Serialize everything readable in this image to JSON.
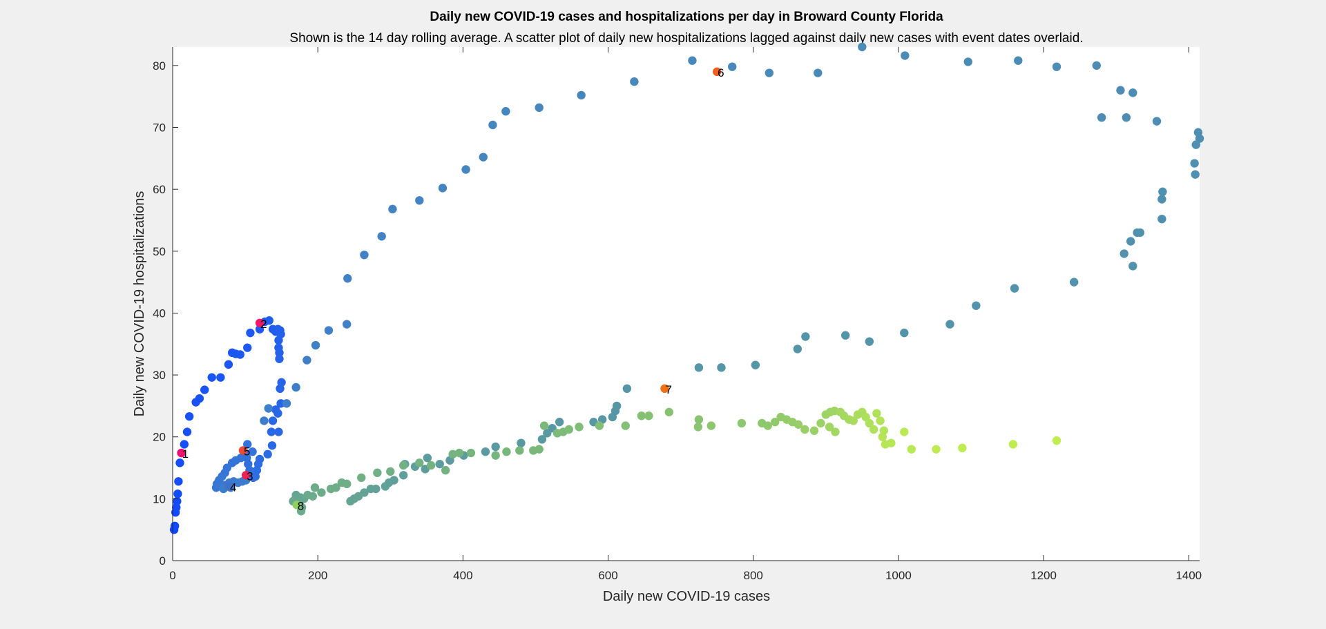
{
  "chart_data": {
    "type": "scatter",
    "title": "Daily new COVID-19 cases and hospitalizations per day in Broward County Florida",
    "subtitle": "Shown is the 14 day rolling average. A scatter plot of daily new hospitalizations lagged against daily new cases with event dates overlaid.",
    "xlabel": "Daily new COVID-19 cases",
    "ylabel": "Daily new COVID-19 hospitalizations",
    "xlim": [
      0,
      1415
    ],
    "ylim": [
      0,
      83
    ],
    "xticks": [
      0,
      200,
      400,
      600,
      800,
      1000,
      1200,
      1400
    ],
    "yticks": [
      0,
      10,
      20,
      30,
      40,
      50,
      60,
      70,
      80
    ],
    "grid": false,
    "color_ramp": [
      "#1048ff",
      "#2f6fe0",
      "#4a8ab8",
      "#5a9aa0",
      "#7ab87a",
      "#c0ee50"
    ],
    "points": [
      {
        "x": 2,
        "y": 5.0
      },
      {
        "x": 3,
        "y": 5.6
      },
      {
        "x": 4,
        "y": 7.8
      },
      {
        "x": 5,
        "y": 8.6
      },
      {
        "x": 6,
        "y": 9.6
      },
      {
        "x": 7,
        "y": 10.8
      },
      {
        "x": 8,
        "y": 12.8
      },
      {
        "x": 10,
        "y": 15.8
      },
      {
        "x": 12,
        "y": 17.4
      },
      {
        "x": 16,
        "y": 18.8
      },
      {
        "x": 20,
        "y": 20.8
      },
      {
        "x": 23,
        "y": 23.3
      },
      {
        "x": 32,
        "y": 25.6
      },
      {
        "x": 37,
        "y": 26.2
      },
      {
        "x": 44,
        "y": 27.6
      },
      {
        "x": 54,
        "y": 29.6
      },
      {
        "x": 66,
        "y": 29.6
      },
      {
        "x": 77,
        "y": 31.7
      },
      {
        "x": 82,
        "y": 33.6
      },
      {
        "x": 87,
        "y": 33.4
      },
      {
        "x": 93,
        "y": 33.3
      },
      {
        "x": 103,
        "y": 34.4
      },
      {
        "x": 107,
        "y": 36.8
      },
      {
        "x": 120,
        "y": 37.4
      },
      {
        "x": 127,
        "y": 38.6
      },
      {
        "x": 133,
        "y": 38.8
      },
      {
        "x": 138,
        "y": 37.4
      },
      {
        "x": 142,
        "y": 37.0
      },
      {
        "x": 145,
        "y": 37.4
      },
      {
        "x": 148,
        "y": 37.2
      },
      {
        "x": 149,
        "y": 36.6
      },
      {
        "x": 146,
        "y": 35.6
      },
      {
        "x": 146,
        "y": 34.4
      },
      {
        "x": 147,
        "y": 33.6
      },
      {
        "x": 147,
        "y": 32.6
      },
      {
        "x": 150,
        "y": 28.8
      },
      {
        "x": 148,
        "y": 27.8
      },
      {
        "x": 149,
        "y": 25.4
      },
      {
        "x": 142,
        "y": 24.4
      },
      {
        "x": 145,
        "y": 23.8
      },
      {
        "x": 138,
        "y": 22.6
      },
      {
        "x": 146,
        "y": 20.8
      },
      {
        "x": 136,
        "y": 20.8
      },
      {
        "x": 137,
        "y": 18.6
      },
      {
        "x": 131,
        "y": 17.2
      },
      {
        "x": 120,
        "y": 16.4
      },
      {
        "x": 118,
        "y": 15.6
      },
      {
        "x": 116,
        "y": 14.6
      },
      {
        "x": 114,
        "y": 13.6
      },
      {
        "x": 111,
        "y": 13.4
      },
      {
        "x": 108,
        "y": 13.6
      },
      {
        "x": 106,
        "y": 14.6
      },
      {
        "x": 104,
        "y": 15.6
      },
      {
        "x": 102,
        "y": 16.6
      },
      {
        "x": 100,
        "y": 17.4
      },
      {
        "x": 103,
        "y": 18.8
      },
      {
        "x": 110,
        "y": 17.6
      },
      {
        "x": 94,
        "y": 16.6
      },
      {
        "x": 87,
        "y": 16.2
      },
      {
        "x": 82,
        "y": 15.8
      },
      {
        "x": 75,
        "y": 15.0
      },
      {
        "x": 72,
        "y": 14.2
      },
      {
        "x": 68,
        "y": 13.6
      },
      {
        "x": 64,
        "y": 13.0
      },
      {
        "x": 61,
        "y": 12.4
      },
      {
        "x": 60,
        "y": 11.8
      },
      {
        "x": 66,
        "y": 12.0
      },
      {
        "x": 72,
        "y": 12.2
      },
      {
        "x": 78,
        "y": 12.6
      },
      {
        "x": 84,
        "y": 12.8
      },
      {
        "x": 90,
        "y": 12.6
      },
      {
        "x": 96,
        "y": 12.8
      },
      {
        "x": 101,
        "y": 13.0
      },
      {
        "x": 70,
        "y": 11.6
      },
      {
        "x": 80,
        "y": 11.8
      },
      {
        "x": 126,
        "y": 22.6
      },
      {
        "x": 132,
        "y": 24.6
      },
      {
        "x": 157,
        "y": 25.4
      },
      {
        "x": 170,
        "y": 28.0
      },
      {
        "x": 185,
        "y": 32.4
      },
      {
        "x": 197,
        "y": 34.8
      },
      {
        "x": 215,
        "y": 37.2
      },
      {
        "x": 240,
        "y": 38.2
      },
      {
        "x": 241,
        "y": 45.6
      },
      {
        "x": 264,
        "y": 49.4
      },
      {
        "x": 288,
        "y": 52.4
      },
      {
        "x": 303,
        "y": 56.8
      },
      {
        "x": 340,
        "y": 58.2
      },
      {
        "x": 372,
        "y": 60.2
      },
      {
        "x": 404,
        "y": 63.2
      },
      {
        "x": 428,
        "y": 65.2
      },
      {
        "x": 441,
        "y": 70.4
      },
      {
        "x": 459,
        "y": 72.6
      },
      {
        "x": 505,
        "y": 73.2
      },
      {
        "x": 563,
        "y": 75.2
      },
      {
        "x": 636,
        "y": 77.4
      },
      {
        "x": 716,
        "y": 80.8
      },
      {
        "x": 771,
        "y": 79.8
      },
      {
        "x": 822,
        "y": 78.8
      },
      {
        "x": 889,
        "y": 78.8
      },
      {
        "x": 950,
        "y": 83.0
      },
      {
        "x": 1009,
        "y": 81.6
      },
      {
        "x": 1096,
        "y": 80.6
      },
      {
        "x": 1165,
        "y": 80.8
      },
      {
        "x": 1218,
        "y": 79.8
      },
      {
        "x": 1273,
        "y": 80.0
      },
      {
        "x": 1306,
        "y": 76.0
      },
      {
        "x": 1323,
        "y": 75.6
      },
      {
        "x": 1280,
        "y": 71.6
      },
      {
        "x": 1314,
        "y": 71.6
      },
      {
        "x": 1356,
        "y": 71.0
      },
      {
        "x": 1413,
        "y": 69.2
      },
      {
        "x": 1415,
        "y": 68.2
      },
      {
        "x": 1410,
        "y": 67.2
      },
      {
        "x": 1408,
        "y": 64.2
      },
      {
        "x": 1409,
        "y": 62.4
      },
      {
        "x": 1364,
        "y": 59.6
      },
      {
        "x": 1363,
        "y": 58.4
      },
      {
        "x": 1363,
        "y": 55.2
      },
      {
        "x": 1329,
        "y": 53.0
      },
      {
        "x": 1333,
        "y": 53.0
      },
      {
        "x": 1320,
        "y": 51.6
      },
      {
        "x": 1311,
        "y": 49.6
      },
      {
        "x": 1323,
        "y": 47.6
      },
      {
        "x": 1242,
        "y": 45.0
      },
      {
        "x": 1160,
        "y": 44.0
      },
      {
        "x": 1107,
        "y": 41.2
      },
      {
        "x": 1071,
        "y": 38.2
      },
      {
        "x": 1008,
        "y": 36.8
      },
      {
        "x": 927,
        "y": 36.4
      },
      {
        "x": 960,
        "y": 35.4
      },
      {
        "x": 872,
        "y": 36.2
      },
      {
        "x": 861,
        "y": 34.2
      },
      {
        "x": 803,
        "y": 31.6
      },
      {
        "x": 756,
        "y": 31.2
      },
      {
        "x": 725,
        "y": 31.2
      },
      {
        "x": 626,
        "y": 27.8
      },
      {
        "x": 612,
        "y": 25.0
      },
      {
        "x": 610,
        "y": 24.2
      },
      {
        "x": 606,
        "y": 23.2
      },
      {
        "x": 592,
        "y": 22.8
      },
      {
        "x": 580,
        "y": 22.4
      },
      {
        "x": 533,
        "y": 22.4
      },
      {
        "x": 523,
        "y": 21.4
      },
      {
        "x": 516,
        "y": 20.6
      },
      {
        "x": 509,
        "y": 19.6
      },
      {
        "x": 480,
        "y": 19.0
      },
      {
        "x": 445,
        "y": 18.4
      },
      {
        "x": 431,
        "y": 17.6
      },
      {
        "x": 401,
        "y": 17.0
      },
      {
        "x": 382,
        "y": 16.2
      },
      {
        "x": 368,
        "y": 15.6
      },
      {
        "x": 351,
        "y": 16.6
      },
      {
        "x": 348,
        "y": 14.8
      },
      {
        "x": 334,
        "y": 15.2
      },
      {
        "x": 320,
        "y": 15.6
      },
      {
        "x": 318,
        "y": 13.8
      },
      {
        "x": 305,
        "y": 13.0
      },
      {
        "x": 298,
        "y": 12.6
      },
      {
        "x": 293,
        "y": 12.0
      },
      {
        "x": 280,
        "y": 11.6
      },
      {
        "x": 273,
        "y": 11.6
      },
      {
        "x": 264,
        "y": 11.0
      },
      {
        "x": 256,
        "y": 10.4
      },
      {
        "x": 250,
        "y": 10.0
      },
      {
        "x": 245,
        "y": 9.6
      },
      {
        "x": 170,
        "y": 10.6
      },
      {
        "x": 176,
        "y": 10.2
      },
      {
        "x": 181,
        "y": 10.0
      },
      {
        "x": 168,
        "y": 9.8
      },
      {
        "x": 172,
        "y": 9.4
      },
      {
        "x": 166,
        "y": 9.6
      },
      {
        "x": 175,
        "y": 9.0
      },
      {
        "x": 178,
        "y": 8.6
      },
      {
        "x": 177,
        "y": 8.0
      },
      {
        "x": 186,
        "y": 10.6
      },
      {
        "x": 193,
        "y": 10.4
      },
      {
        "x": 196,
        "y": 11.8
      },
      {
        "x": 205,
        "y": 11.0
      },
      {
        "x": 218,
        "y": 11.6
      },
      {
        "x": 225,
        "y": 11.8
      },
      {
        "x": 233,
        "y": 12.6
      },
      {
        "x": 240,
        "y": 12.4
      },
      {
        "x": 260,
        "y": 13.4
      },
      {
        "x": 282,
        "y": 14.2
      },
      {
        "x": 300,
        "y": 14.4
      },
      {
        "x": 318,
        "y": 15.4
      },
      {
        "x": 340,
        "y": 15.8
      },
      {
        "x": 356,
        "y": 15.4
      },
      {
        "x": 376,
        "y": 14.6
      },
      {
        "x": 386,
        "y": 17.2
      },
      {
        "x": 395,
        "y": 17.4
      },
      {
        "x": 411,
        "y": 17.4
      },
      {
        "x": 445,
        "y": 17.0
      },
      {
        "x": 460,
        "y": 17.6
      },
      {
        "x": 478,
        "y": 17.8
      },
      {
        "x": 497,
        "y": 17.8
      },
      {
        "x": 505,
        "y": 18.0
      },
      {
        "x": 512,
        "y": 21.8
      },
      {
        "x": 530,
        "y": 20.6
      },
      {
        "x": 538,
        "y": 20.8
      },
      {
        "x": 546,
        "y": 21.2
      },
      {
        "x": 560,
        "y": 21.6
      },
      {
        "x": 588,
        "y": 21.8
      },
      {
        "x": 624,
        "y": 21.8
      },
      {
        "x": 646,
        "y": 23.4
      },
      {
        "x": 656,
        "y": 23.4
      },
      {
        "x": 684,
        "y": 24.0
      },
      {
        "x": 725,
        "y": 22.8
      },
      {
        "x": 724,
        "y": 21.6
      },
      {
        "x": 742,
        "y": 21.8
      },
      {
        "x": 784,
        "y": 22.2
      },
      {
        "x": 812,
        "y": 22.2
      },
      {
        "x": 820,
        "y": 21.8
      },
      {
        "x": 830,
        "y": 22.4
      },
      {
        "x": 838,
        "y": 23.2
      },
      {
        "x": 846,
        "y": 22.8
      },
      {
        "x": 854,
        "y": 22.4
      },
      {
        "x": 862,
        "y": 22.0
      },
      {
        "x": 871,
        "y": 21.2
      },
      {
        "x": 884,
        "y": 21.0
      },
      {
        "x": 893,
        "y": 22.2
      },
      {
        "x": 900,
        "y": 23.6
      },
      {
        "x": 906,
        "y": 24.0
      },
      {
        "x": 912,
        "y": 24.2
      },
      {
        "x": 905,
        "y": 21.6
      },
      {
        "x": 913,
        "y": 20.8
      },
      {
        "x": 920,
        "y": 24.0
      },
      {
        "x": 925,
        "y": 23.4
      },
      {
        "x": 932,
        "y": 22.8
      },
      {
        "x": 938,
        "y": 22.6
      },
      {
        "x": 944,
        "y": 23.6
      },
      {
        "x": 950,
        "y": 24.0
      },
      {
        "x": 955,
        "y": 23.2
      },
      {
        "x": 960,
        "y": 22.2
      },
      {
        "x": 966,
        "y": 21.2
      },
      {
        "x": 970,
        "y": 23.8
      },
      {
        "x": 975,
        "y": 22.6
      },
      {
        "x": 980,
        "y": 21.0
      },
      {
        "x": 978,
        "y": 20.0
      },
      {
        "x": 982,
        "y": 18.8
      },
      {
        "x": 990,
        "y": 19.0
      },
      {
        "x": 1008,
        "y": 20.8
      },
      {
        "x": 1018,
        "y": 18.0
      },
      {
        "x": 1052,
        "y": 18.0
      },
      {
        "x": 1088,
        "y": 18.2
      },
      {
        "x": 1158,
        "y": 18.8
      },
      {
        "x": 1218,
        "y": 19.4
      }
    ],
    "events": [
      {
        "id": "1",
        "x": 12,
        "y": 17.4,
        "color": "#f0106e"
      },
      {
        "id": "2",
        "x": 120,
        "y": 38.4,
        "color": "#f01868"
      },
      {
        "id": "3",
        "x": 101,
        "y": 13.8,
        "color": "#f02050"
      },
      {
        "id": "4",
        "x": 78,
        "y": 12.0,
        "color": "#4070c8"
      },
      {
        "id": "5",
        "x": 97,
        "y": 17.8,
        "color": "#f04a38"
      },
      {
        "id": "6",
        "x": 750,
        "y": 79.0,
        "color": "#f06020"
      },
      {
        "id": "7",
        "x": 678,
        "y": 27.8,
        "color": "#f07018"
      },
      {
        "id": "8",
        "x": 171,
        "y": 9.0,
        "color": "#8ed060"
      }
    ]
  }
}
